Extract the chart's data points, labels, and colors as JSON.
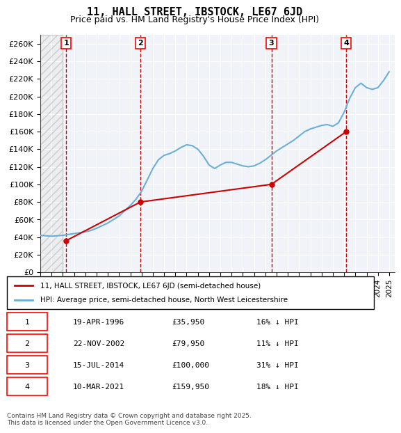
{
  "title": "11, HALL STREET, IBSTOCK, LE67 6JD",
  "subtitle": "Price paid vs. HM Land Registry's House Price Index (HPI)",
  "ylabel": "",
  "ylim": [
    0,
    270000
  ],
  "yticks": [
    0,
    20000,
    40000,
    60000,
    80000,
    100000,
    120000,
    140000,
    160000,
    180000,
    200000,
    220000,
    240000,
    260000
  ],
  "ytick_labels": [
    "£0",
    "£20K",
    "£40K",
    "£60K",
    "£80K",
    "£100K",
    "£120K",
    "£140K",
    "£160K",
    "£180K",
    "£200K",
    "£220K",
    "£240K",
    "£260K"
  ],
  "xlim_start": 1994.0,
  "xlim_end": 2025.5,
  "sale_dates": [
    1996.3,
    2002.9,
    2014.54,
    2021.19
  ],
  "sale_prices": [
    35950,
    79950,
    100000,
    159950
  ],
  "sale_labels": [
    "1",
    "2",
    "3",
    "4"
  ],
  "hpi_color": "#6baed6",
  "sale_color": "#cc0000",
  "vline_color": "#cc0000",
  "background_color": "#ffffff",
  "grid_color": "#cccccc",
  "hatch_color": "#dddddd",
  "legend_line1": "11, HALL STREET, IBSTOCK, LE67 6JD (semi-detached house)",
  "legend_line2": "HPI: Average price, semi-detached house, North West Leicestershire",
  "table_rows": [
    [
      "1",
      "19-APR-1996",
      "£35,950",
      "16% ↓ HPI"
    ],
    [
      "2",
      "22-NOV-2002",
      "£79,950",
      "11% ↓ HPI"
    ],
    [
      "3",
      "15-JUL-2014",
      "£100,000",
      "31% ↓ HPI"
    ],
    [
      "4",
      "10-MAR-2021",
      "£159,950",
      "18% ↓ HPI"
    ]
  ],
  "footer": "Contains HM Land Registry data © Crown copyright and database right 2025.\nThis data is licensed under the Open Government Licence v3.0.",
  "hpi_years": [
    1994.0,
    1994.5,
    1995.0,
    1995.5,
    1996.0,
    1996.5,
    1997.0,
    1997.5,
    1998.0,
    1998.5,
    1999.0,
    1999.5,
    2000.0,
    2000.5,
    2001.0,
    2001.5,
    2002.0,
    2002.5,
    2003.0,
    2003.5,
    2004.0,
    2004.5,
    2005.0,
    2005.5,
    2006.0,
    2006.5,
    2007.0,
    2007.5,
    2008.0,
    2008.5,
    2009.0,
    2009.5,
    2010.0,
    2010.5,
    2011.0,
    2011.5,
    2012.0,
    2012.5,
    2013.0,
    2013.5,
    2014.0,
    2014.5,
    2015.0,
    2015.5,
    2016.0,
    2016.5,
    2017.0,
    2017.5,
    2018.0,
    2018.5,
    2019.0,
    2019.5,
    2020.0,
    2020.5,
    2021.0,
    2021.5,
    2022.0,
    2022.5,
    2023.0,
    2023.5,
    2024.0,
    2024.5,
    2025.0
  ],
  "hpi_values": [
    42000,
    41500,
    41000,
    41500,
    42000,
    43000,
    44000,
    45000,
    46000,
    47500,
    50000,
    53000,
    56000,
    60000,
    64000,
    70000,
    76000,
    83000,
    92000,
    105000,
    118000,
    128000,
    133000,
    135000,
    138000,
    142000,
    145000,
    144000,
    140000,
    132000,
    122000,
    118000,
    122000,
    125000,
    125000,
    123000,
    121000,
    120000,
    121000,
    124000,
    128000,
    133000,
    138000,
    142000,
    146000,
    150000,
    155000,
    160000,
    163000,
    165000,
    167000,
    168000,
    166000,
    170000,
    182000,
    198000,
    210000,
    215000,
    210000,
    208000,
    210000,
    218000,
    228000
  ]
}
